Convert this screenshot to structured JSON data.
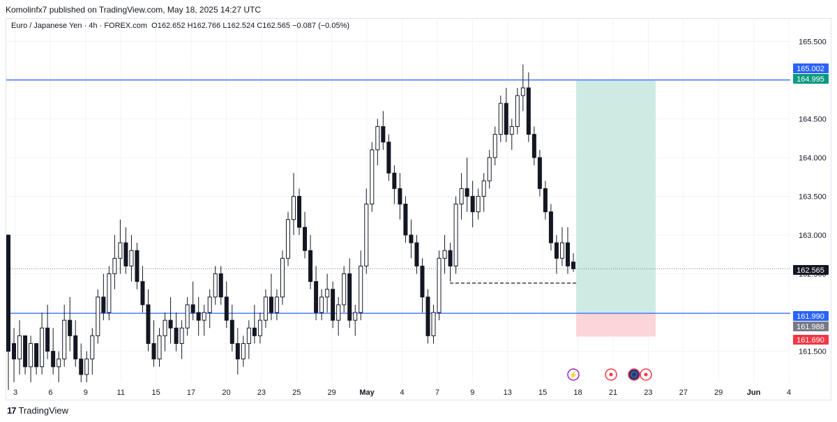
{
  "header": {
    "published_text": "Komolinfx7 published on TradingView.com, May 18, 2025 14:27 UTC"
  },
  "legend": {
    "symbol": "Euro / Japanese Yen · 4h · FOREX.com",
    "open_label": "O",
    "open": "162.652",
    "high_label": "H",
    "high": "162.766",
    "low_label": "L",
    "low": "162.524",
    "close_label": "C",
    "close": "162.565",
    "change": "−0.087 (−0.05%)"
  },
  "footer": {
    "logo_mark": "17",
    "brand": "TradingView"
  },
  "colors": {
    "up": "#131722",
    "down": "#131722",
    "grid": "#f0f3fa",
    "hline": "#2962ff",
    "profit_zone": "#cdebe3",
    "loss_zone": "#fcd5d8",
    "tag_blue": "#2962ff",
    "tag_green": "#089981",
    "tag_gray": "#787b86",
    "tag_red": "#f23645",
    "tag_dark": "#131722"
  },
  "chart_data": {
    "type": "candlestick",
    "ylim": [
      161.1,
      165.8
    ],
    "y_ticks": [
      "165.500",
      "165.000",
      "164.500",
      "164.000",
      "163.500",
      "163.000",
      "162.500",
      "161.500"
    ],
    "x_ticks": [
      "3",
      "6",
      "9",
      "11",
      "15",
      "17",
      "20",
      "23",
      "25",
      "29",
      "May",
      "4",
      "7",
      "9",
      "13",
      "15",
      "18",
      "21",
      "23",
      "27",
      "29",
      "Jun",
      "4"
    ],
    "candles": [
      [
        163.0,
        163.0,
        161.0,
        161.5
      ],
      [
        161.6,
        161.8,
        161.1,
        161.4
      ],
      [
        161.4,
        161.9,
        161.2,
        161.7
      ],
      [
        161.7,
        161.7,
        161.2,
        161.3
      ],
      [
        161.3,
        161.7,
        161.1,
        161.6
      ],
      [
        161.6,
        161.6,
        161.2,
        161.3
      ],
      [
        161.3,
        162.0,
        161.2,
        161.8
      ],
      [
        161.8,
        162.1,
        161.4,
        161.5
      ],
      [
        161.5,
        161.8,
        161.2,
        161.3
      ],
      [
        161.3,
        161.5,
        161.1,
        161.4
      ],
      [
        161.4,
        162.1,
        161.3,
        161.9
      ],
      [
        161.9,
        162.2,
        161.5,
        161.7
      ],
      [
        161.7,
        161.9,
        161.3,
        161.4
      ],
      [
        161.4,
        161.6,
        161.1,
        161.2
      ],
      [
        161.2,
        161.5,
        161.1,
        161.4
      ],
      [
        161.4,
        161.8,
        161.2,
        161.7
      ],
      [
        161.7,
        162.3,
        161.6,
        162.2
      ],
      [
        162.2,
        162.5,
        161.9,
        162.0
      ],
      [
        162.0,
        162.6,
        161.9,
        162.5
      ],
      [
        162.5,
        163.0,
        162.3,
        162.7
      ],
      [
        162.7,
        163.2,
        162.5,
        162.9
      ],
      [
        162.9,
        163.1,
        162.5,
        162.6
      ],
      [
        162.6,
        163.0,
        162.4,
        162.8
      ],
      [
        162.8,
        162.9,
        162.3,
        162.4
      ],
      [
        162.4,
        162.6,
        162.0,
        162.1
      ],
      [
        162.1,
        162.3,
        161.5,
        161.6
      ],
      [
        161.6,
        161.9,
        161.3,
        161.4
      ],
      [
        161.4,
        161.8,
        161.3,
        161.7
      ],
      [
        161.7,
        162.0,
        161.5,
        161.9
      ],
      [
        161.9,
        162.2,
        161.6,
        161.8
      ],
      [
        161.8,
        162.0,
        161.5,
        161.6
      ],
      [
        161.6,
        161.9,
        161.4,
        161.8
      ],
      [
        161.8,
        162.2,
        161.7,
        162.1
      ],
      [
        162.1,
        162.4,
        161.9,
        162.0
      ],
      [
        162.0,
        162.2,
        161.7,
        161.9
      ],
      [
        161.9,
        162.1,
        161.7,
        162.0
      ],
      [
        162.0,
        162.3,
        161.8,
        162.2
      ],
      [
        162.2,
        162.6,
        162.1,
        162.5
      ],
      [
        162.5,
        162.6,
        162.1,
        162.2
      ],
      [
        162.2,
        162.4,
        161.8,
        161.9
      ],
      [
        161.9,
        162.1,
        161.5,
        161.6
      ],
      [
        161.6,
        161.8,
        161.2,
        161.4
      ],
      [
        161.4,
        161.7,
        161.3,
        161.6
      ],
      [
        161.6,
        161.9,
        161.4,
        161.8
      ],
      [
        161.8,
        162.1,
        161.6,
        161.7
      ],
      [
        161.7,
        162.0,
        161.6,
        161.9
      ],
      [
        161.9,
        162.3,
        161.8,
        162.2
      ],
      [
        162.2,
        162.5,
        161.9,
        162.0
      ],
      [
        162.0,
        162.3,
        161.9,
        162.2
      ],
      [
        162.2,
        162.8,
        162.1,
        162.7
      ],
      [
        162.7,
        163.3,
        162.6,
        163.2
      ],
      [
        163.2,
        163.8,
        163.0,
        163.5
      ],
      [
        163.5,
        163.6,
        163.0,
        163.1
      ],
      [
        163.1,
        163.3,
        162.7,
        162.8
      ],
      [
        162.8,
        163.0,
        162.3,
        162.4
      ],
      [
        162.4,
        162.6,
        161.9,
        162.0
      ],
      [
        162.0,
        162.3,
        161.9,
        162.2
      ],
      [
        162.2,
        162.5,
        162.0,
        162.3
      ],
      [
        162.3,
        162.4,
        161.8,
        161.9
      ],
      [
        161.9,
        162.2,
        161.7,
        162.1
      ],
      [
        162.1,
        162.6,
        162.0,
        162.5
      ],
      [
        162.5,
        162.7,
        161.8,
        161.9
      ],
      [
        161.9,
        162.1,
        161.7,
        162.0
      ],
      [
        162.0,
        162.8,
        161.9,
        162.6
      ],
      [
        162.6,
        163.6,
        162.5,
        163.4
      ],
      [
        163.4,
        164.2,
        163.3,
        164.1
      ],
      [
        164.1,
        164.5,
        163.9,
        164.4
      ],
      [
        164.4,
        164.6,
        164.1,
        164.2
      ],
      [
        164.2,
        164.3,
        163.7,
        163.8
      ],
      [
        163.8,
        163.9,
        163.4,
        163.6
      ],
      [
        163.6,
        163.8,
        163.2,
        163.4
      ],
      [
        163.4,
        163.5,
        162.9,
        163.0
      ],
      [
        163.0,
        163.2,
        162.7,
        162.9
      ],
      [
        162.9,
        163.0,
        162.5,
        162.6
      ],
      [
        162.6,
        162.7,
        162.0,
        162.2
      ],
      [
        162.2,
        162.3,
        161.6,
        161.7
      ],
      [
        161.7,
        162.1,
        161.6,
        162.0
      ],
      [
        162.0,
        162.8,
        161.9,
        162.7
      ],
      [
        162.7,
        163.0,
        162.5,
        162.8
      ],
      [
        162.8,
        162.9,
        162.4,
        162.6
      ],
      [
        162.6,
        163.5,
        162.5,
        163.4
      ],
      [
        163.4,
        163.8,
        163.2,
        163.6
      ],
      [
        163.6,
        164.0,
        163.3,
        163.5
      ],
      [
        163.5,
        163.7,
        163.1,
        163.3
      ],
      [
        163.3,
        163.6,
        163.2,
        163.5
      ],
      [
        163.5,
        163.8,
        163.3,
        163.7
      ],
      [
        163.7,
        164.1,
        163.6,
        164.0
      ],
      [
        164.0,
        164.4,
        163.9,
        164.3
      ],
      [
        164.3,
        164.8,
        164.2,
        164.7
      ],
      [
        164.7,
        164.9,
        164.2,
        164.3
      ],
      [
        164.3,
        164.5,
        164.1,
        164.4
      ],
      [
        164.4,
        164.9,
        164.3,
        164.8
      ],
      [
        164.8,
        165.2,
        164.6,
        164.9
      ],
      [
        164.9,
        165.1,
        164.2,
        164.3
      ],
      [
        164.3,
        164.4,
        163.9,
        164.0
      ],
      [
        164.0,
        164.1,
        163.5,
        163.6
      ],
      [
        163.6,
        163.7,
        163.2,
        163.3
      ],
      [
        163.3,
        163.4,
        162.8,
        162.9
      ],
      [
        162.9,
        163.0,
        162.5,
        162.7
      ],
      [
        162.7,
        163.1,
        162.6,
        162.9
      ],
      [
        162.9,
        163.1,
        162.5,
        162.6
      ],
      [
        162.652,
        162.766,
        162.524,
        162.565
      ]
    ],
    "levels": [
      {
        "label": "165.002",
        "value": 165.002,
        "style": "line"
      },
      {
        "label": "161.990",
        "value": 161.99,
        "style": "line"
      }
    ],
    "price_tags": [
      {
        "label": "165.002",
        "value": 165.002,
        "color": "blue"
      },
      {
        "label": "164.995",
        "value": 164.995,
        "color": "green"
      },
      {
        "label": "162.565",
        "value": 162.565,
        "color": "dark"
      },
      {
        "label": "161.990",
        "value": 161.99,
        "color": "blue"
      },
      {
        "label": "161.988",
        "value": 161.988,
        "color": "gray"
      },
      {
        "label": "161.690",
        "value": 161.69,
        "color": "red"
      }
    ],
    "position": {
      "entry": 161.99,
      "target": 164.995,
      "stop": 161.69
    },
    "dashed_level": 162.38,
    "event_icons": [
      "lightning",
      "red-dot",
      "eu-flag",
      "red-dot"
    ]
  }
}
